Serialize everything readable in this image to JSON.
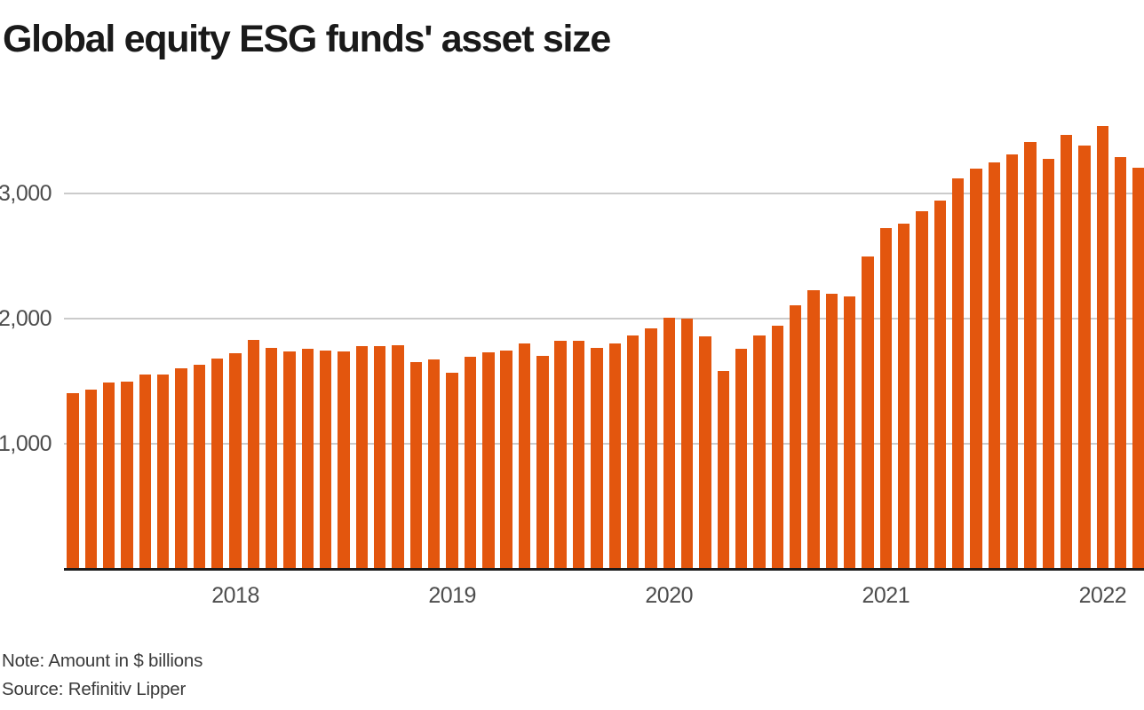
{
  "header": {
    "title": "Global equity ESG funds' asset size"
  },
  "footer": {
    "note": "Note: Amount in $ billions",
    "source": "Source: Refinitiv Lipper"
  },
  "chart_data": {
    "type": "bar",
    "title": "Global equity ESG funds' asset size",
    "xlabel": "",
    "ylabel": "",
    "unit": "$ billions",
    "ylim": [
      0,
      3700
    ],
    "yticks": [
      1000,
      2000,
      3000
    ],
    "ytick_labels": [
      "1,000",
      "2,000",
      "3,000"
    ],
    "grid": true,
    "legend": "none",
    "bar_color": "#e3560e",
    "grid_color": "#cbcbcb",
    "axis_color": "#1a1a1a",
    "tick_label_color": "#4d4d4d",
    "x": [
      "2017-04",
      "2017-05",
      "2017-06",
      "2017-07",
      "2017-08",
      "2017-09",
      "2017-10",
      "2017-11",
      "2017-12",
      "2018-01",
      "2018-02",
      "2018-03",
      "2018-04",
      "2018-05",
      "2018-06",
      "2018-07",
      "2018-08",
      "2018-09",
      "2018-10",
      "2018-11",
      "2018-12",
      "2019-01",
      "2019-02",
      "2019-03",
      "2019-04",
      "2019-05",
      "2019-06",
      "2019-07",
      "2019-08",
      "2019-09",
      "2019-10",
      "2019-11",
      "2019-12",
      "2020-01",
      "2020-02",
      "2020-03",
      "2020-04",
      "2020-05",
      "2020-06",
      "2020-07",
      "2020-08",
      "2020-09",
      "2020-10",
      "2020-11",
      "2020-12",
      "2021-01",
      "2021-02",
      "2021-03",
      "2021-04",
      "2021-05",
      "2021-06",
      "2021-07",
      "2021-08",
      "2021-09",
      "2021-10",
      "2021-11",
      "2021-12",
      "2022-01",
      "2022-02",
      "2022-03"
    ],
    "values": [
      1405,
      1435,
      1490,
      1495,
      1550,
      1555,
      1600,
      1630,
      1680,
      1720,
      1830,
      1765,
      1740,
      1760,
      1745,
      1740,
      1780,
      1780,
      1790,
      1650,
      1675,
      1570,
      1695,
      1730,
      1745,
      1800,
      1700,
      1825,
      1820,
      1765,
      1800,
      1865,
      1920,
      2010,
      2000,
      1860,
      1580,
      1760,
      1865,
      1945,
      2105,
      2225,
      2200,
      2180,
      2495,
      2720,
      2760,
      2860,
      2940,
      3120,
      3200,
      3250,
      3310,
      3410,
      3280,
      3465,
      3385,
      3540,
      3290,
      3205
    ],
    "year_tick_labels": [
      {
        "label": "2018",
        "month_index": 9
      },
      {
        "label": "2019",
        "month_index": 21
      },
      {
        "label": "2020",
        "month_index": 33
      },
      {
        "label": "2021",
        "month_index": 45
      },
      {
        "label": "2022",
        "month_index": 57
      }
    ]
  }
}
